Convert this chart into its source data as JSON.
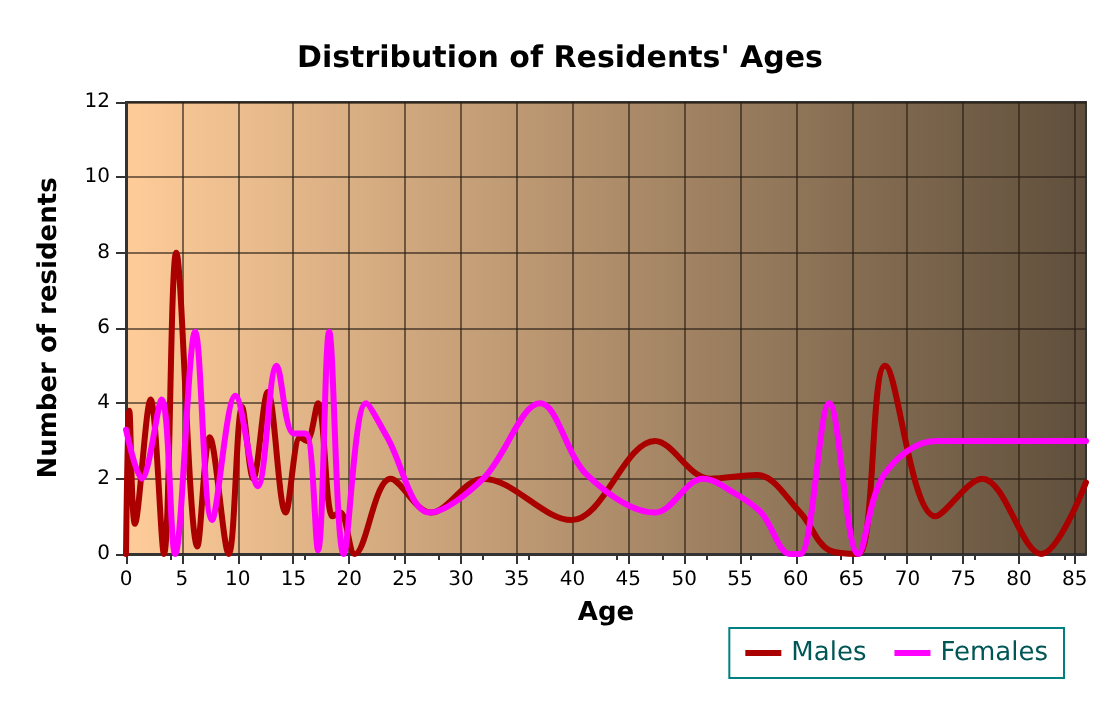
{
  "chart_data": {
    "type": "line",
    "title": "Distribution of Residents' Ages",
    "xlabel": "Age",
    "ylabel": "Number of residents",
    "xlim": [
      0,
      86
    ],
    "xticks": [
      0,
      5,
      10,
      15,
      20,
      25,
      30,
      35,
      40,
      45,
      50,
      55,
      60,
      65,
      70,
      75,
      80,
      85
    ],
    "ylim": [
      0,
      12
    ],
    "yticks": [
      0,
      2,
      4,
      6,
      8,
      10,
      12
    ],
    "grid": true,
    "legend": "bottom right",
    "marker": "none",
    "line_style": "solid",
    "series": [
      {
        "name": "Males",
        "color": "#aa0000",
        "x": [
          0,
          0.3,
          0.8,
          2.2,
          3.4,
          4.5,
          6.4,
          7.5,
          9.2,
          10.4,
          11.4,
          12.7,
          14.3,
          15.6,
          16.2,
          17.2,
          18.5,
          19.2,
          20.5,
          23.7,
          27.3,
          32,
          39.9,
          47.4,
          52.3,
          56.5,
          60.4,
          63,
          65.6,
          68,
          72.5,
          76.7,
          82,
          86
        ],
        "values": [
          0,
          3.8,
          0.8,
          4.1,
          0,
          8,
          0.2,
          3.1,
          0,
          3.9,
          2,
          4.3,
          1.1,
          3.1,
          3,
          4,
          1,
          1.1,
          0,
          2,
          1.1,
          2,
          0.9,
          3,
          2,
          2.1,
          1.1,
          0.1,
          0,
          5,
          1,
          2,
          0,
          1.9
        ]
      },
      {
        "name": "Females",
        "color": "#ff00ff",
        "x": [
          0,
          1.4,
          3.2,
          4.4,
          6.2,
          7.7,
          9.8,
          11.8,
          13.5,
          15,
          16.1,
          17.2,
          18.2,
          19.5,
          21.5,
          23.4,
          27.2,
          32,
          37.1,
          41.3,
          47.4,
          51.7,
          54.6,
          56.9,
          59.5,
          60.4,
          63,
          65.6,
          67.9,
          72.5,
          77.6,
          86
        ],
        "values": [
          3.3,
          2,
          4.1,
          0,
          5.9,
          0.9,
          4.2,
          1.8,
          5,
          3.2,
          3.2,
          0.1,
          5.9,
          0,
          4,
          3.1,
          1.1,
          2,
          4,
          2.1,
          1.1,
          2,
          1.6,
          1.1,
          0,
          0,
          4,
          0,
          2.1,
          3,
          3,
          3
        ]
      }
    ]
  }
}
